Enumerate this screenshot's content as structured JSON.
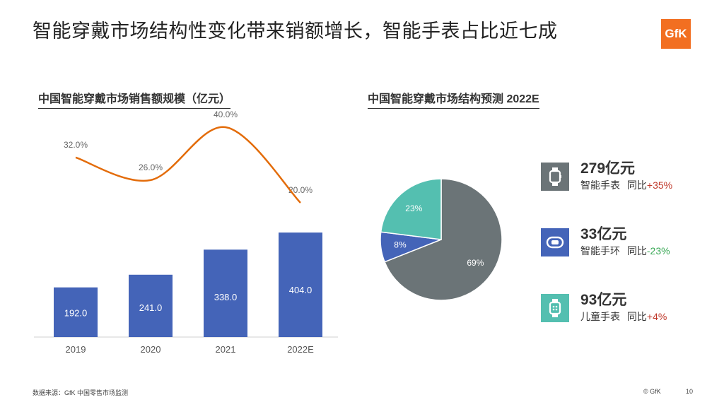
{
  "page": {
    "title": "智能穿戴市场结构性变化带来销额增长，智能手表占比近七成",
    "logo": "GfK",
    "footer_source": "数据来源：GfK 中国零售市场监测",
    "footer_copyright": "© GfK",
    "page_number": "10"
  },
  "colors": {
    "bar": "#4464b8",
    "line": "#e36c0a",
    "smartwatch": "#6b7477",
    "band": "#4464b8",
    "kids_watch": "#54bfb0",
    "positive_change": "#c0392b",
    "negative_change": "#3aa856"
  },
  "chart_data": [
    {
      "type": "bar",
      "title": "中国智能穿戴市场销售额规模（亿元）",
      "categories": [
        "2019",
        "2020",
        "2021",
        "2022E"
      ],
      "series": [
        {
          "values": [
            192.0,
            241.0,
            338.0,
            404.0
          ],
          "labels": [
            "192.0",
            "241.0",
            "338.0",
            "404.0"
          ]
        }
      ],
      "line_series": {
        "values": [
          32.0,
          26.0,
          40.0,
          20.0
        ],
        "labels": [
          "32.0%",
          "26.0%",
          "40.0%",
          "20.0%"
        ]
      },
      "ylim": [
        0,
        420
      ],
      "grid": false,
      "legend": "none"
    },
    {
      "type": "pie",
      "title": "中国智能穿戴市场结构预测 2022E",
      "slices": [
        {
          "label": "智能手表",
          "value": 69,
          "text": "69%",
          "color": "#6b7477"
        },
        {
          "label": "智能手环",
          "value": 8,
          "text": "8%",
          "color": "#4464b8"
        },
        {
          "label": "儿童手表",
          "value": 23,
          "text": "23%",
          "color": "#54bfb0"
        }
      ]
    }
  ],
  "legend_items": [
    {
      "icon": "smartwatch-icon",
      "value": "279亿元",
      "name": "智能手表",
      "yoy_label": "同比",
      "yoy": "+35%",
      "direction": "up"
    },
    {
      "icon": "band-icon",
      "value": "33亿元",
      "name": "智能手环",
      "yoy_label": "同比",
      "yoy": "-23%",
      "direction": "down"
    },
    {
      "icon": "kids-watch-icon",
      "value": "93亿元",
      "name": "儿童手表",
      "yoy_label": "同比",
      "yoy": "+4%",
      "direction": "up"
    }
  ]
}
